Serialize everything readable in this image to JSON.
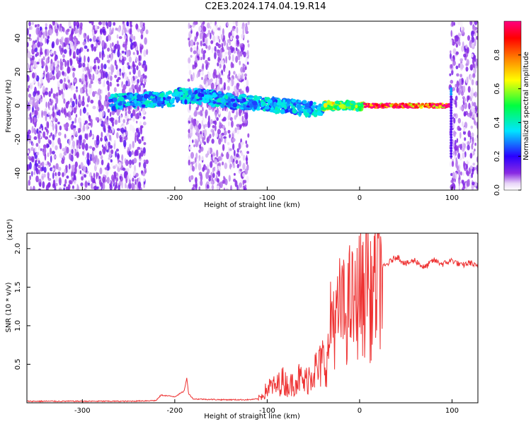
{
  "title": "C2E3.2024.174.04.19.R14",
  "chart_data": [
    {
      "type": "heatmap",
      "xlabel": "Height of straight line (km)",
      "ylabel": "Frequency (Hz)",
      "xlim": [
        -360,
        128
      ],
      "ylim": [
        -50,
        50
      ],
      "x_ticks": [
        -300,
        -200,
        -100,
        0,
        100
      ],
      "y_ticks": [
        -40,
        -20,
        0,
        20,
        40
      ],
      "colorbar": {
        "label": "Normalized spectral amplitude",
        "range": [
          0,
          1
        ],
        "ticks": [
          "0.0",
          "0.2",
          "0.4",
          "0.6",
          "0.8"
        ],
        "colors": [
          "#ffffff",
          "#e8d4f8",
          "#8a2be2",
          "#2a00ff",
          "#00e5ff",
          "#00ff40",
          "#ffff00",
          "#ff8000",
          "#ff0000",
          "#ff0080"
        ]
      },
      "features": [
        {
          "x_range": [
            -360,
            -230
          ],
          "freq_range": [
            -50,
            50
          ],
          "amplitude": 0.1
        },
        {
          "x_range": [
            -185,
            -120
          ],
          "freq_range": [
            -50,
            50
          ],
          "amplitude": 0.07
        },
        {
          "x_range": [
            98,
            128
          ],
          "freq_range": [
            -50,
            50
          ],
          "amplitude": 0.08
        },
        {
          "x_range": [
            -270,
            -40
          ],
          "freq_center": 2,
          "freq_halfwidth": 4,
          "amplitude": 0.35
        },
        {
          "x_range": [
            -40,
            5
          ],
          "freq_center": 0,
          "freq_halfwidth": 2,
          "amplitude": 0.6
        },
        {
          "x_range": [
            5,
            97
          ],
          "freq_center": 0,
          "freq_halfwidth": 1.2,
          "amplitude": 0.95
        }
      ]
    },
    {
      "type": "line",
      "xlabel": "Height of straight line (km)",
      "ylabel": "SNR (10 * v/v)",
      "y_multiplier": "(x10⁴)",
      "xlim": [
        -360,
        128
      ],
      "ylim": [
        0,
        2.2
      ],
      "x_ticks": [
        -300,
        -200,
        -100,
        0,
        100
      ],
      "y_ticks": [
        "0.5",
        "1.0",
        "1.5",
        "2.0"
      ],
      "color": "#ee3333",
      "series": [
        {
          "x": [
            -360,
            -300,
            -250,
            -220,
            -215,
            -200,
            -190,
            -187,
            -185,
            -180,
            -150,
            -120,
            -110,
            -105,
            -100,
            -95,
            -90,
            -85,
            -80,
            -75,
            -70,
            -65,
            -60,
            -55,
            -50,
            -45,
            -40,
            -35,
            -30,
            -25,
            -20,
            -15,
            -10,
            -5,
            0,
            5,
            9,
            10,
            15,
            20,
            25,
            30,
            35,
            40,
            50,
            60,
            70,
            80,
            90,
            100,
            110,
            120,
            128
          ],
          "y": [
            0.02,
            0.02,
            0.02,
            0.03,
            0.1,
            0.08,
            0.15,
            0.32,
            0.12,
            0.05,
            0.04,
            0.04,
            0.05,
            0.1,
            0.18,
            0.22,
            0.2,
            0.3,
            0.25,
            0.22,
            0.3,
            0.32,
            0.25,
            0.35,
            0.45,
            0.4,
            0.55,
            0.5,
            1.2,
            1.0,
            1.3,
            1.1,
            1.35,
            1.2,
            1.5,
            1.3,
            2.15,
            1.2,
            1.5,
            1.6,
            1.75,
            1.8,
            1.85,
            1.9,
            1.8,
            1.85,
            1.75,
            1.85,
            1.8,
            1.85,
            1.78,
            1.82,
            1.75
          ]
        }
      ]
    }
  ]
}
